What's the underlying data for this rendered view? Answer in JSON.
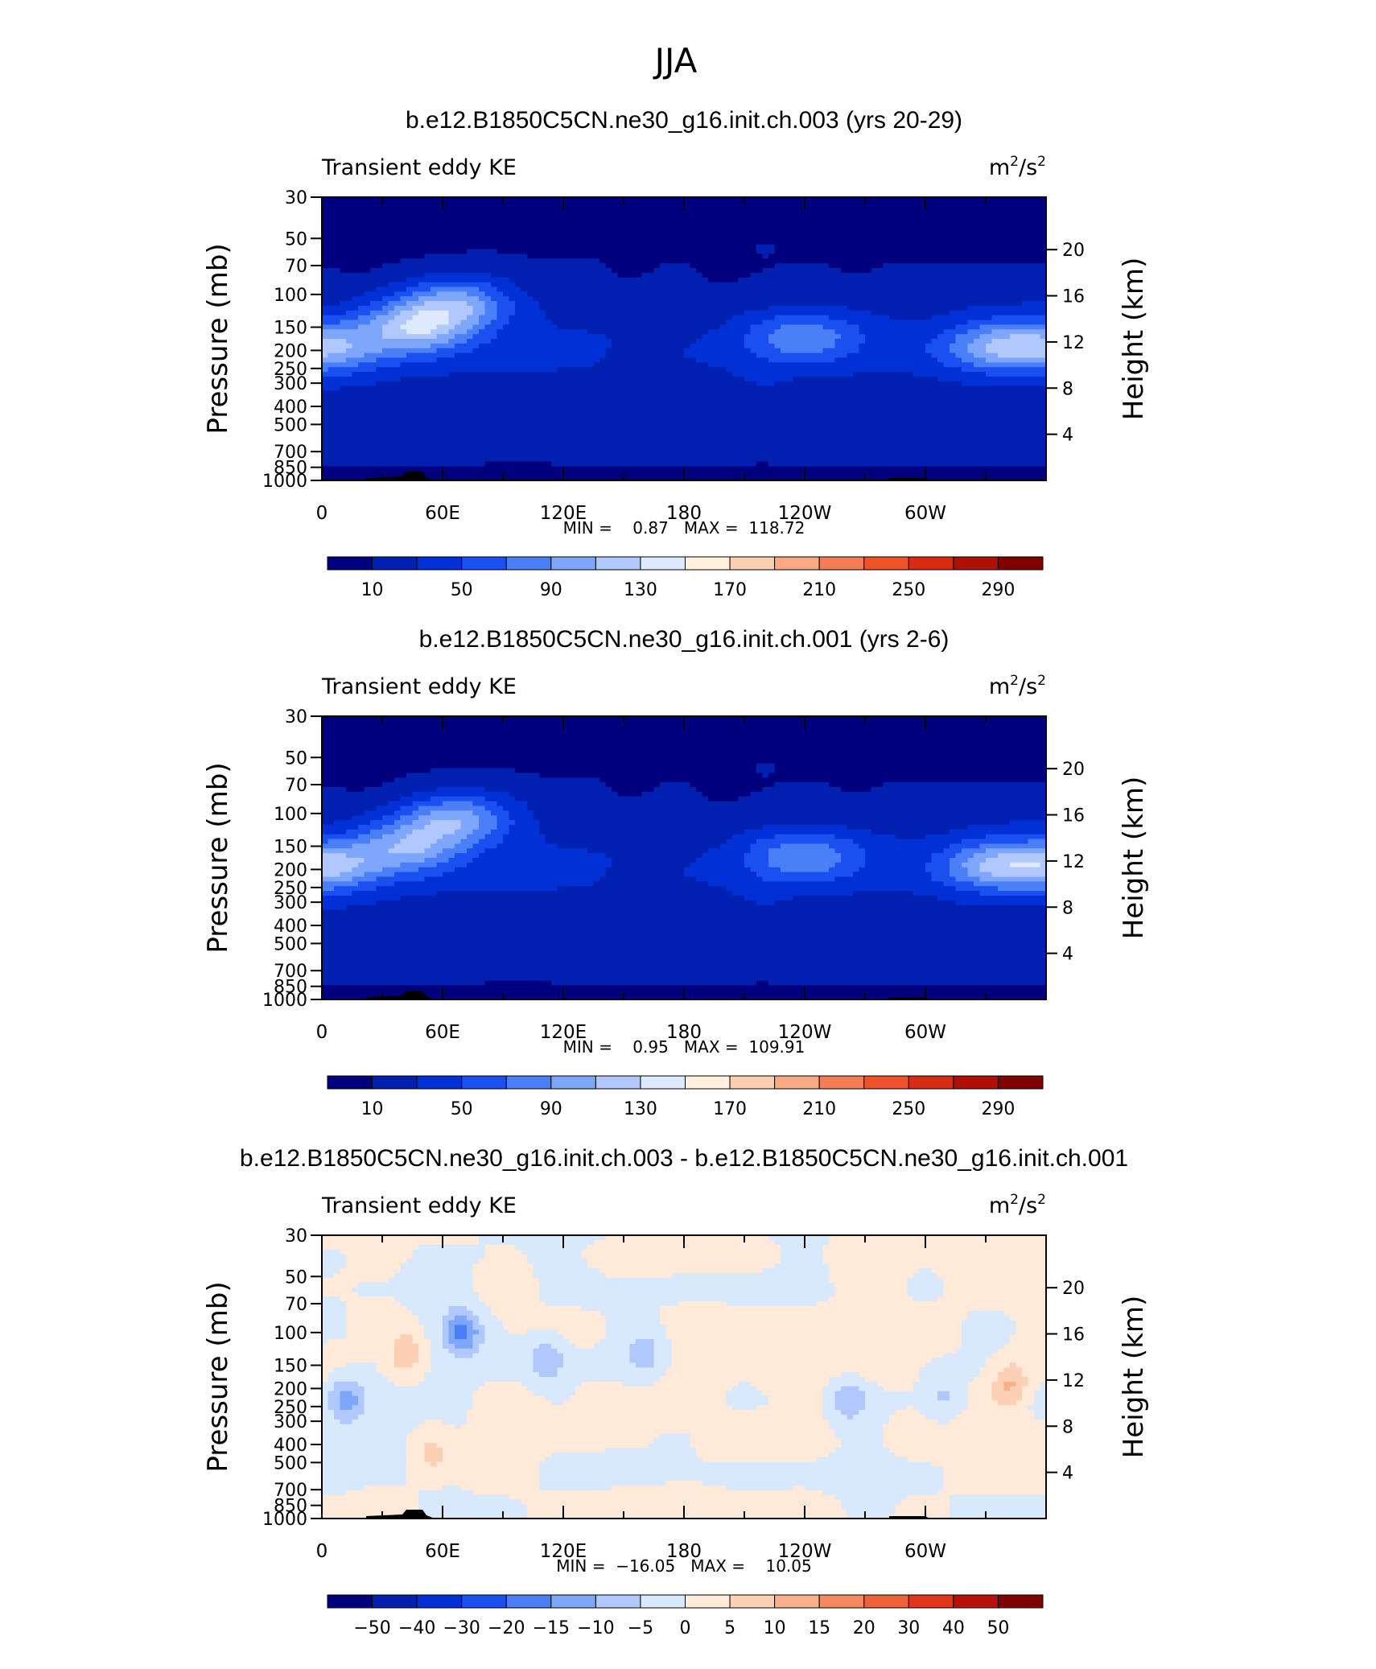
{
  "figure": {
    "title": "JJA"
  },
  "colors": {
    "abs": [
      "#00007f",
      "#0020b0",
      "#0030d6",
      "#1a50f0",
      "#4a7ff8",
      "#7ea6fb",
      "#b0c8fd",
      "#dde9fd",
      "#fff1de",
      "#fbd0b0",
      "#f9aa84",
      "#f57d56",
      "#ee5228",
      "#d82c12",
      "#b00f06",
      "#800000"
    ],
    "diff": [
      "#00007f",
      "#0020b0",
      "#0030d6",
      "#1a50f0",
      "#4a7ff8",
      "#7ea6fb",
      "#b0c8fd",
      "#d8e8fd",
      "#ffe9d8",
      "#fcd0b4",
      "#fab08a",
      "#f68a60",
      "#f06038",
      "#e0361a",
      "#b81008",
      "#800000"
    ]
  },
  "chart_data": [
    {
      "type": "heatmap",
      "title": "b.e12.B1850C5CN.ne30_g16.init.ch.003 (yrs 20-29)",
      "left_label": "Transient eddy KE",
      "units": "m",
      "units_exp1": "2",
      "units_mid": "/s",
      "units_exp2": "2",
      "ylabel": "Pressure (mb)",
      "ylabel_right": "Height (km)",
      "x_ticks": [
        "0",
        "60E",
        "120E",
        "180",
        "120W",
        "60W"
      ],
      "y_ticks": [
        "30",
        "50",
        "70",
        "100",
        "150",
        "200",
        "250",
        "300",
        "400",
        "500",
        "700",
        "850",
        "1000"
      ],
      "y_ticks_right": [
        "20",
        "16",
        "12",
        "8",
        "4"
      ],
      "stats": "MIN =    0.87   MAX =  118.72",
      "colorbar_labels": [
        "10",
        "50",
        "90",
        "130",
        "170",
        "210",
        "250",
        "290"
      ],
      "jet_cores": [
        {
          "lon": 48,
          "p": 150,
          "peak": 118
        },
        {
          "lon": 68,
          "p": 110,
          "peak": 105
        },
        {
          "lon": 5,
          "p": 190,
          "peak": 90
        },
        {
          "lon": 240,
          "p": 170,
          "peak": 85
        },
        {
          "lon": 335,
          "p": 190,
          "peak": 95
        }
      ]
    },
    {
      "type": "heatmap",
      "title": "b.e12.B1850C5CN.ne30_g16.init.ch.001 (yrs 2-6)",
      "left_label": "Transient eddy KE",
      "units": "m",
      "units_exp1": "2",
      "units_mid": "/s",
      "units_exp2": "2",
      "ylabel": "Pressure (mb)",
      "ylabel_right": "Height (km)",
      "x_ticks": [
        "0",
        "60E",
        "120E",
        "180",
        "120W",
        "60W"
      ],
      "y_ticks": [
        "30",
        "50",
        "70",
        "100",
        "150",
        "200",
        "250",
        "300",
        "400",
        "500",
        "700",
        "850",
        "1000"
      ],
      "y_ticks_right": [
        "20",
        "16",
        "12",
        "8",
        "4"
      ],
      "stats": "MIN =    0.95   MAX =  109.91",
      "colorbar_labels": [
        "10",
        "50",
        "90",
        "130",
        "170",
        "210",
        "250",
        "290"
      ],
      "jet_cores": [
        {
          "lon": 45,
          "p": 150,
          "peak": 100
        },
        {
          "lon": 68,
          "p": 105,
          "peak": 110
        },
        {
          "lon": 5,
          "p": 190,
          "peak": 95
        },
        {
          "lon": 240,
          "p": 170,
          "peak": 88
        },
        {
          "lon": 335,
          "p": 190,
          "peak": 100
        }
      ]
    },
    {
      "type": "heatmap",
      "title": "b.e12.B1850C5CN.ne30_g16.init.ch.003 - b.e12.B1850C5CN.ne30_g16.init.ch.001",
      "left_label": "Transient eddy KE",
      "units": "m",
      "units_exp1": "2",
      "units_mid": "/s",
      "units_exp2": "2",
      "ylabel": "Pressure (mb)",
      "ylabel_right": "Height (km)",
      "x_ticks": [
        "0",
        "60E",
        "120E",
        "180",
        "120W",
        "60W"
      ],
      "y_ticks": [
        "30",
        "50",
        "70",
        "100",
        "150",
        "200",
        "250",
        "300",
        "400",
        "500",
        "700",
        "850",
        "1000"
      ],
      "y_ticks_right": [
        "20",
        "16",
        "12",
        "8",
        "4"
      ],
      "stats": "MIN =  −16.05   MAX =    10.05",
      "colorbar_labels": [
        "−50",
        "−40",
        "−30",
        "−20",
        "−15",
        "−10",
        "−5",
        "0",
        "5",
        "10",
        "15",
        "20",
        "30",
        "40",
        "50"
      ],
      "features": [
        {
          "lon": 70,
          "p": 100,
          "amp": -16
        },
        {
          "lon": 12,
          "p": 230,
          "amp": -12
        },
        {
          "lon": 112,
          "p": 140,
          "amp": -9
        },
        {
          "lon": 160,
          "p": 130,
          "amp": -8
        },
        {
          "lon": 262,
          "p": 230,
          "amp": -9
        },
        {
          "lon": 310,
          "p": 220,
          "amp": -6
        },
        {
          "lon": 42,
          "p": 130,
          "amp": 9
        },
        {
          "lon": 55,
          "p": 450,
          "amp": 7
        },
        {
          "lon": 342,
          "p": 190,
          "amp": 10
        }
      ]
    }
  ]
}
